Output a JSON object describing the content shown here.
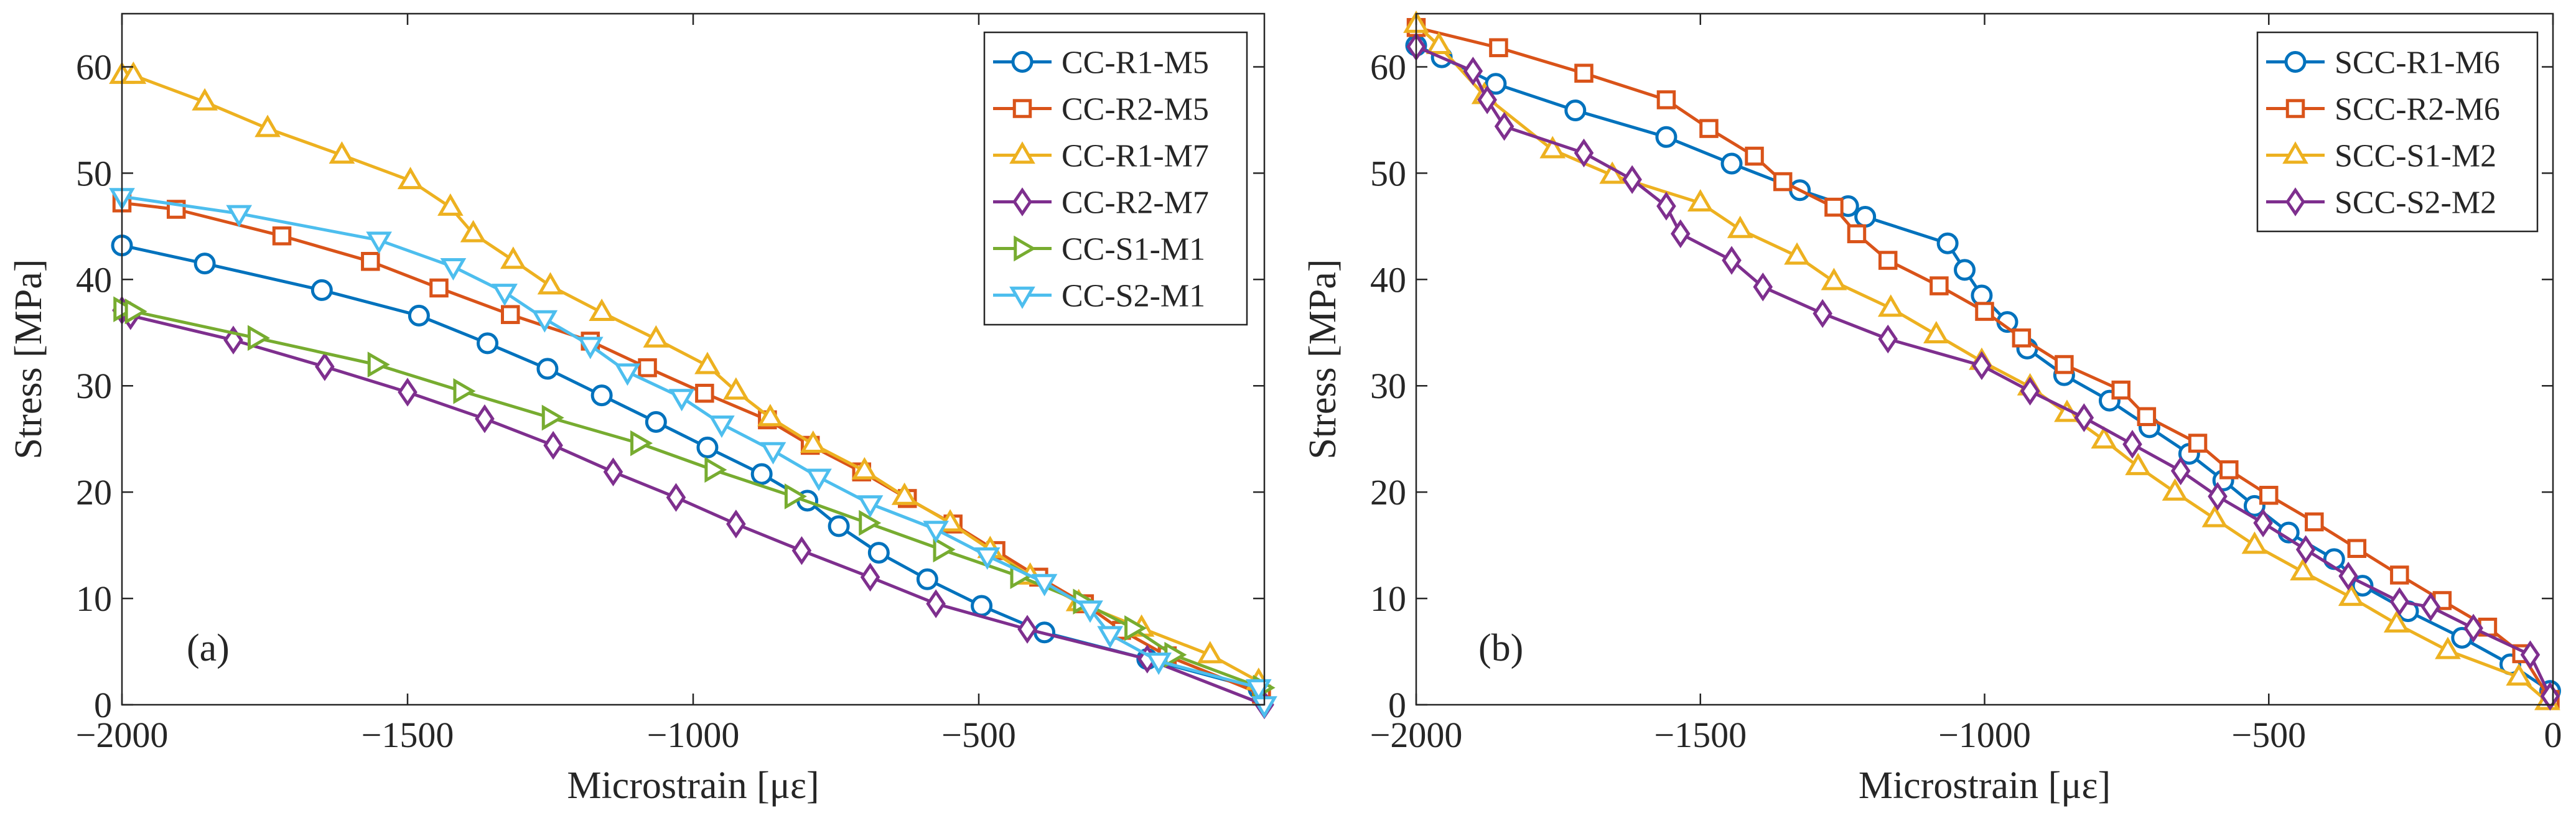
{
  "chart_data": [
    {
      "type": "line",
      "panel_label": "(a)",
      "xlabel": "Microstrain [με]",
      "ylabel": "Stress [MPa]",
      "xlim": [
        -2000,
        0
      ],
      "ylim": [
        0,
        65
      ],
      "xticks": [
        -2000,
        -1500,
        -1000,
        -500
      ],
      "xtick_labels": [
        "−2000",
        "−1500",
        "−1000",
        "−500"
      ],
      "yticks": [
        0,
        10,
        20,
        30,
        40,
        50,
        60
      ],
      "ytick_labels": [
        "0",
        "10",
        "20",
        "30",
        "40",
        "50",
        "60"
      ],
      "legend_position": "top-right",
      "series": [
        {
          "name": "CC-R1-M5",
          "color": "#0072BD",
          "marker": "circle",
          "points": [
            [
              -2000,
              43.2
            ],
            [
              -1855,
              41.5
            ],
            [
              -1650,
              39.0
            ],
            [
              -1480,
              36.6
            ],
            [
              -1360,
              34.0
            ],
            [
              -1255,
              31.6
            ],
            [
              -1160,
              29.1
            ],
            [
              -1065,
              26.6
            ],
            [
              -975,
              24.2
            ],
            [
              -880,
              21.7
            ],
            [
              -800,
              19.2
            ],
            [
              -745,
              16.8
            ],
            [
              -675,
              14.3
            ],
            [
              -590,
              11.8
            ],
            [
              -495,
              9.3
            ],
            [
              -385,
              6.8
            ],
            [
              -205,
              4.3
            ],
            [
              -10,
              1.5
            ]
          ]
        },
        {
          "name": "CC-R2-M5",
          "color": "#D95319",
          "marker": "square",
          "points": [
            [
              -2000,
              47.2
            ],
            [
              -1905,
              46.6
            ],
            [
              -1720,
              44.1
            ],
            [
              -1565,
              41.7
            ],
            [
              -1445,
              39.2
            ],
            [
              -1320,
              36.7
            ],
            [
              -1180,
              34.2
            ],
            [
              -1080,
              31.7
            ],
            [
              -980,
              29.3
            ],
            [
              -870,
              26.8
            ],
            [
              -795,
              24.4
            ],
            [
              -705,
              21.9
            ],
            [
              -625,
              19.4
            ],
            [
              -545,
              17.0
            ],
            [
              -470,
              14.5
            ],
            [
              -395,
              12.0
            ],
            [
              -315,
              9.5
            ],
            [
              -250,
              7.0
            ],
            [
              -170,
              4.6
            ],
            [
              -5,
              1.0
            ]
          ]
        },
        {
          "name": "CC-R1-M7",
          "color": "#EDB120",
          "marker": "triangle-up",
          "points": [
            [
              -2000,
              59.2
            ],
            [
              -1980,
              59.2
            ],
            [
              -1855,
              56.7
            ],
            [
              -1745,
              54.2
            ],
            [
              -1615,
              51.7
            ],
            [
              -1495,
              49.3
            ],
            [
              -1425,
              46.8
            ],
            [
              -1385,
              44.3
            ],
            [
              -1315,
              41.8
            ],
            [
              -1250,
              39.4
            ],
            [
              -1160,
              36.9
            ],
            [
              -1065,
              34.4
            ],
            [
              -975,
              31.9
            ],
            [
              -925,
              29.5
            ],
            [
              -865,
              27.0
            ],
            [
              -790,
              24.5
            ],
            [
              -700,
              22.0
            ],
            [
              -630,
              19.6
            ],
            [
              -550,
              17.1
            ],
            [
              -480,
              14.6
            ],
            [
              -410,
              12.1
            ],
            [
              -325,
              9.6
            ],
            [
              -215,
              7.2
            ],
            [
              -95,
              4.7
            ],
            [
              -10,
              2.2
            ]
          ]
        },
        {
          "name": "CC-R2-M7",
          "color": "#7E2F8E",
          "marker": "diamond",
          "points": [
            [
              -2000,
              37.1
            ],
            [
              -1985,
              36.6
            ],
            [
              -1805,
              34.3
            ],
            [
              -1645,
              31.8
            ],
            [
              -1500,
              29.4
            ],
            [
              -1365,
              26.9
            ],
            [
              -1245,
              24.4
            ],
            [
              -1140,
              21.9
            ],
            [
              -1030,
              19.5
            ],
            [
              -925,
              17.0
            ],
            [
              -810,
              14.5
            ],
            [
              -690,
              12.0
            ],
            [
              -575,
              9.5
            ],
            [
              -415,
              7.1
            ],
            [
              -205,
              4.3
            ],
            [
              0,
              0.0
            ]
          ]
        },
        {
          "name": "CC-S1-M1",
          "color": "#77AC30",
          "marker": "triangle-right",
          "points": [
            [
              -2000,
              37.2
            ],
            [
              -1980,
              37.0
            ],
            [
              -1765,
              34.5
            ],
            [
              -1555,
              32.0
            ],
            [
              -1405,
              29.5
            ],
            [
              -1250,
              27.0
            ],
            [
              -1095,
              24.6
            ],
            [
              -965,
              22.1
            ],
            [
              -825,
              19.6
            ],
            [
              -695,
              17.1
            ],
            [
              -565,
              14.6
            ],
            [
              -430,
              12.1
            ],
            [
              -320,
              9.7
            ],
            [
              -230,
              7.2
            ],
            [
              -160,
              4.7
            ],
            [
              -5,
              1.6
            ]
          ]
        },
        {
          "name": "CC-S2-M1",
          "color": "#4DBEEE",
          "marker": "triangle-down",
          "points": [
            [
              -2000,
              47.8
            ],
            [
              -1795,
              46.2
            ],
            [
              -1550,
              43.7
            ],
            [
              -1420,
              41.2
            ],
            [
              -1330,
              38.8
            ],
            [
              -1260,
              36.3
            ],
            [
              -1180,
              33.8
            ],
            [
              -1115,
              31.3
            ],
            [
              -1020,
              28.9
            ],
            [
              -950,
              26.4
            ],
            [
              -860,
              23.9
            ],
            [
              -780,
              21.4
            ],
            [
              -690,
              18.9
            ],
            [
              -575,
              16.5
            ],
            [
              -485,
              14.0
            ],
            [
              -385,
              11.5
            ],
            [
              -305,
              9.0
            ],
            [
              -270,
              6.6
            ],
            [
              -185,
              4.1
            ],
            [
              -10,
              1.6
            ],
            [
              0,
              0.0
            ]
          ]
        }
      ]
    },
    {
      "type": "line",
      "panel_label": "(b)",
      "xlabel": "Microstrain [με]",
      "ylabel": "Stress [MPa]",
      "xlim": [
        -2000,
        0
      ],
      "ylim": [
        0,
        65
      ],
      "xticks": [
        -2000,
        -1500,
        -1000,
        -500,
        0
      ],
      "xtick_labels": [
        "−2000",
        "−1500",
        "−1000",
        "−500",
        "0"
      ],
      "yticks": [
        0,
        10,
        20,
        30,
        40,
        50,
        60
      ],
      "ytick_labels": [
        "0",
        "10",
        "20",
        "30",
        "40",
        "50",
        "60"
      ],
      "legend_position": "top-right",
      "series": [
        {
          "name": "SCC-R1-M6",
          "color": "#0072BD",
          "marker": "circle",
          "points": [
            [
              -2000,
              62.0
            ],
            [
              -1955,
              60.9
            ],
            [
              -1860,
              58.4
            ],
            [
              -1720,
              55.9
            ],
            [
              -1560,
              53.4
            ],
            [
              -1445,
              50.9
            ],
            [
              -1325,
              48.4
            ],
            [
              -1240,
              46.9
            ],
            [
              -1210,
              45.9
            ],
            [
              -1065,
              43.4
            ],
            [
              -1035,
              40.9
            ],
            [
              -1005,
              38.5
            ],
            [
              -960,
              36.0
            ],
            [
              -925,
              33.5
            ],
            [
              -860,
              31.0
            ],
            [
              -780,
              28.6
            ],
            [
              -710,
              26.1
            ],
            [
              -640,
              23.6
            ],
            [
              -580,
              21.1
            ],
            [
              -525,
              18.7
            ],
            [
              -465,
              16.2
            ],
            [
              -385,
              13.7
            ],
            [
              -335,
              11.2
            ],
            [
              -255,
              8.8
            ],
            [
              -160,
              6.3
            ],
            [
              -75,
              3.8
            ],
            [
              -5,
              1.3
            ]
          ]
        },
        {
          "name": "SCC-R2-M6",
          "color": "#D95319",
          "marker": "square",
          "points": [
            [
              -2000,
              63.7
            ],
            [
              -1855,
              61.8
            ],
            [
              -1705,
              59.4
            ],
            [
              -1560,
              56.9
            ],
            [
              -1485,
              54.2
            ],
            [
              -1405,
              51.6
            ],
            [
              -1355,
              49.2
            ],
            [
              -1265,
              46.8
            ],
            [
              -1225,
              44.3
            ],
            [
              -1170,
              41.8
            ],
            [
              -1080,
              39.4
            ],
            [
              -1000,
              37.0
            ],
            [
              -935,
              34.5
            ],
            [
              -860,
              32.0
            ],
            [
              -760,
              29.6
            ],
            [
              -715,
              27.1
            ],
            [
              -625,
              24.6
            ],
            [
              -570,
              22.1
            ],
            [
              -500,
              19.7
            ],
            [
              -420,
              17.2
            ],
            [
              -345,
              14.7
            ],
            [
              -270,
              12.2
            ],
            [
              -195,
              9.8
            ],
            [
              -115,
              7.3
            ],
            [
              -55,
              4.8
            ],
            [
              -5,
              0.5
            ]
          ]
        },
        {
          "name": "SCC-S1-M2",
          "color": "#EDB120",
          "marker": "triangle-up",
          "points": [
            [
              -2000,
              64.0
            ],
            [
              -1960,
              62.0
            ],
            [
              -1880,
              57.3
            ],
            [
              -1760,
              52.2
            ],
            [
              -1655,
              49.8
            ],
            [
              -1500,
              47.2
            ],
            [
              -1430,
              44.7
            ],
            [
              -1330,
              42.2
            ],
            [
              -1265,
              39.8
            ],
            [
              -1165,
              37.3
            ],
            [
              -1085,
              34.8
            ],
            [
              -1005,
              32.3
            ],
            [
              -920,
              29.9
            ],
            [
              -855,
              27.4
            ],
            [
              -790,
              24.9
            ],
            [
              -730,
              22.4
            ],
            [
              -665,
              20.0
            ],
            [
              -595,
              17.5
            ],
            [
              -525,
              15.0
            ],
            [
              -440,
              12.5
            ],
            [
              -355,
              10.1
            ],
            [
              -275,
              7.6
            ],
            [
              -185,
              5.1
            ],
            [
              -60,
              2.6
            ],
            [
              -10,
              0.3
            ]
          ]
        },
        {
          "name": "SCC-S2-M2",
          "color": "#7E2F8E",
          "marker": "diamond",
          "points": [
            [
              -2000,
              61.9
            ],
            [
              -1900,
              59.6
            ],
            [
              -1875,
              56.9
            ],
            [
              -1845,
              54.4
            ],
            [
              -1705,
              51.9
            ],
            [
              -1620,
              49.4
            ],
            [
              -1560,
              46.9
            ],
            [
              -1535,
              44.3
            ],
            [
              -1445,
              41.8
            ],
            [
              -1390,
              39.3
            ],
            [
              -1285,
              36.8
            ],
            [
              -1170,
              34.4
            ],
            [
              -1005,
              31.9
            ],
            [
              -920,
              29.5
            ],
            [
              -825,
              27.0
            ],
            [
              -740,
              24.5
            ],
            [
              -655,
              22.0
            ],
            [
              -590,
              19.6
            ],
            [
              -510,
              17.1
            ],
            [
              -435,
              14.6
            ],
            [
              -360,
              12.1
            ],
            [
              -270,
              9.7
            ],
            [
              -215,
              9.2
            ],
            [
              -140,
              7.2
            ],
            [
              -40,
              4.7
            ],
            [
              -5,
              0.8
            ]
          ]
        }
      ]
    }
  ]
}
